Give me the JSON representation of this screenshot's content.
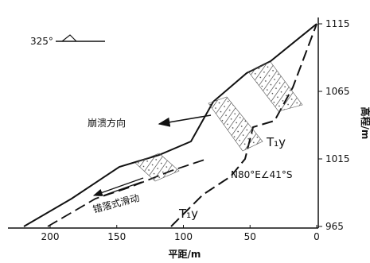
{
  "x_axis": {
    "label": "平距/m",
    "ticks": [
      200,
      150,
      100,
      50,
      0
    ]
  },
  "y_axis": {
    "label": "高程/m",
    "ticks": [
      965,
      1015,
      1065,
      1115
    ]
  },
  "labels": {
    "azimuth": "325°",
    "collapse_direction": "崩溃方向",
    "formation_upper": "T₁y",
    "formation_lower": "T₁y",
    "attitude": "N80°E∠41°S",
    "slide_type": "错落式滑动"
  }
}
